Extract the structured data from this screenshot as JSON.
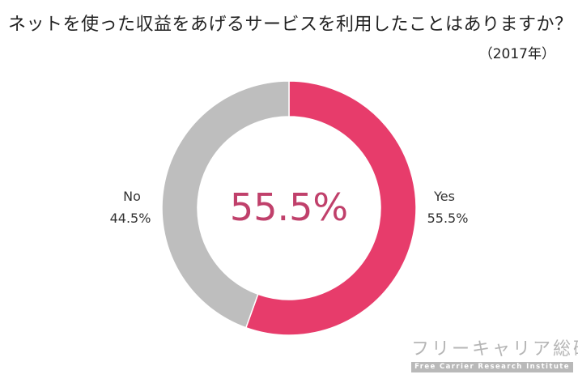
{
  "chart_data": {
    "type": "pie",
    "title": "ネットを使った収益をあげるサービスを利用したことはありますか？",
    "subtitle": "（2017年）",
    "center_text": "55.5%",
    "slices": [
      {
        "name": "Yes",
        "value": 55.5,
        "value_label": "55.5%",
        "color": "#e73c6b"
      },
      {
        "name": "No",
        "value": 44.5,
        "value_label": "44.5%",
        "color": "#bebebe"
      }
    ],
    "center_text_color": "#c0406b"
  },
  "watermark": {
    "logo_text_jp": "フリーキャリア総研",
    "logo_text_en": "Free Carrier Research Institute"
  }
}
